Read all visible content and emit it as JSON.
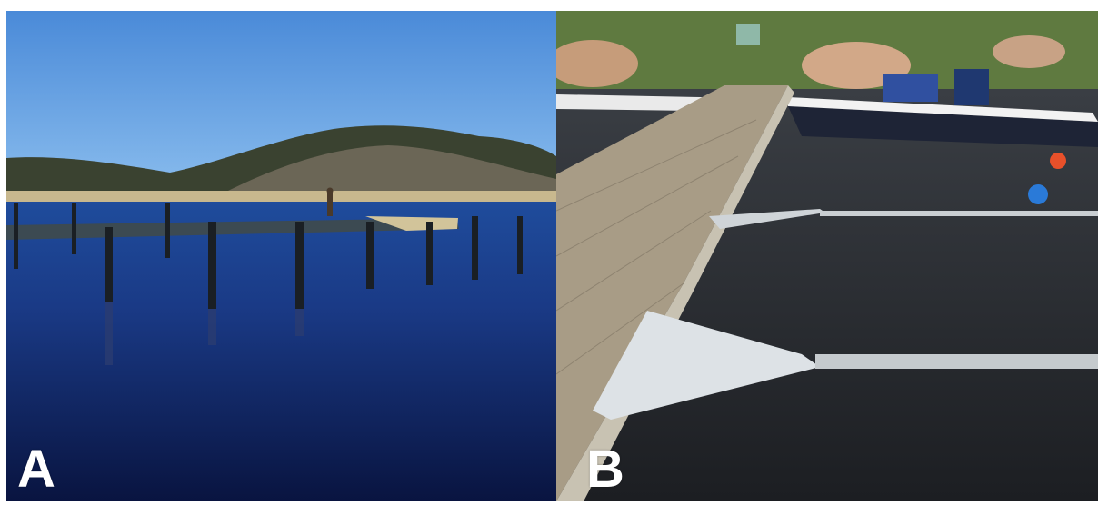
{
  "figure": {
    "panels": [
      {
        "label": "A",
        "description_icon": "photo-pier-calm-water"
      },
      {
        "label": "B",
        "description_icon": "photo-floating-dock-boats"
      }
    ]
  },
  "colors": {
    "sky": "#5f9de0",
    "water_dark": "#0c1a4a",
    "hill": "#3b4030",
    "dock_wood": "#b8b09a",
    "metal_mesh": "#d8dde0",
    "label": "#ffffff"
  }
}
